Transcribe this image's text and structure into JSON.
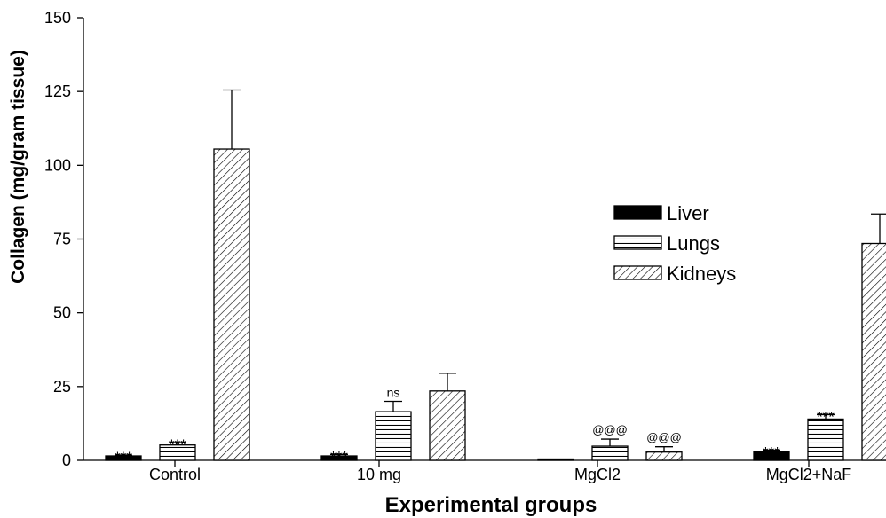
{
  "chart_data": {
    "type": "bar",
    "title": "",
    "xlabel": "Experimental groups",
    "ylabel": "Collagen (mg/gram tissue)",
    "ylim": [
      0,
      150
    ],
    "yticks": [
      0,
      25,
      50,
      75,
      100,
      125,
      150
    ],
    "categories": [
      "Control",
      "10 mg",
      "MgCl2",
      "MgCl2+NaF"
    ],
    "series": [
      {
        "name": "Liver",
        "pattern": "solid",
        "color": "#000000",
        "values": [
          1.5,
          1.5,
          0.2,
          3.0
        ],
        "errors": [
          0.3,
          0.5,
          0.1,
          0.4
        ],
        "annotations": [
          "***",
          "***",
          "",
          "***"
        ]
      },
      {
        "name": "Lungs",
        "pattern": "horizontal-lines",
        "color": "#000000",
        "values": [
          5.2,
          16.5,
          4.8,
          14.0
        ],
        "errors": [
          0.8,
          3.5,
          2.4,
          1.5
        ],
        "annotations": [
          "***",
          "ns",
          "@@@",
          "***"
        ]
      },
      {
        "name": "Kidneys",
        "pattern": "diagonal-lines",
        "color": "#000000",
        "values": [
          105.5,
          23.5,
          2.8,
          73.5
        ],
        "errors": [
          20.0,
          6.0,
          1.8,
          10.0
        ],
        "annotations": [
          "",
          "",
          "@@@",
          ""
        ]
      }
    ],
    "legend": {
      "placement": "right-middle"
    },
    "grid": false
  }
}
